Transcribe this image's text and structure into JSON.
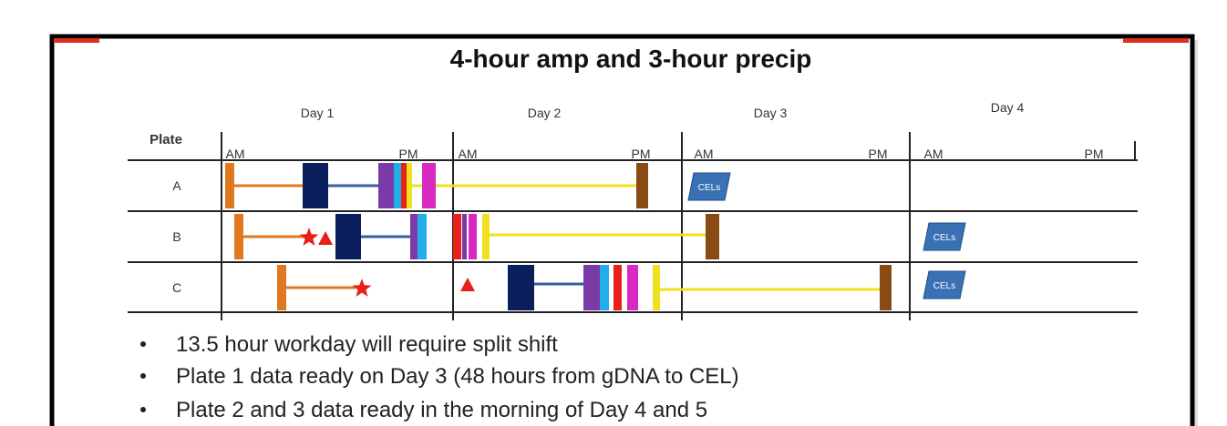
{
  "title": "4-hour amp and 3-hour precip",
  "header": {
    "plate": "Plate",
    "days": [
      {
        "label": "Day 1",
        "am": "AM",
        "pm": "PM"
      },
      {
        "label": "Day 2",
        "am": "AM",
        "pm": "PM"
      },
      {
        "label": "Day 3",
        "am": "AM",
        "pm": "PM"
      },
      {
        "label": "Day 4",
        "am": "AM",
        "pm": "PM"
      }
    ]
  },
  "rows": [
    {
      "label": "A",
      "cel": "CELs"
    },
    {
      "label": "B",
      "cel": "CELs"
    },
    {
      "label": "C",
      "cel": "CELs"
    }
  ],
  "bullets": [
    "13.5 hour workday will require split shift",
    "Plate 1 data ready on Day 3 (48 hours from gDNA to CEL)",
    "Plate 2 and 3 data ready in the morning of Day 4 and 5"
  ]
}
